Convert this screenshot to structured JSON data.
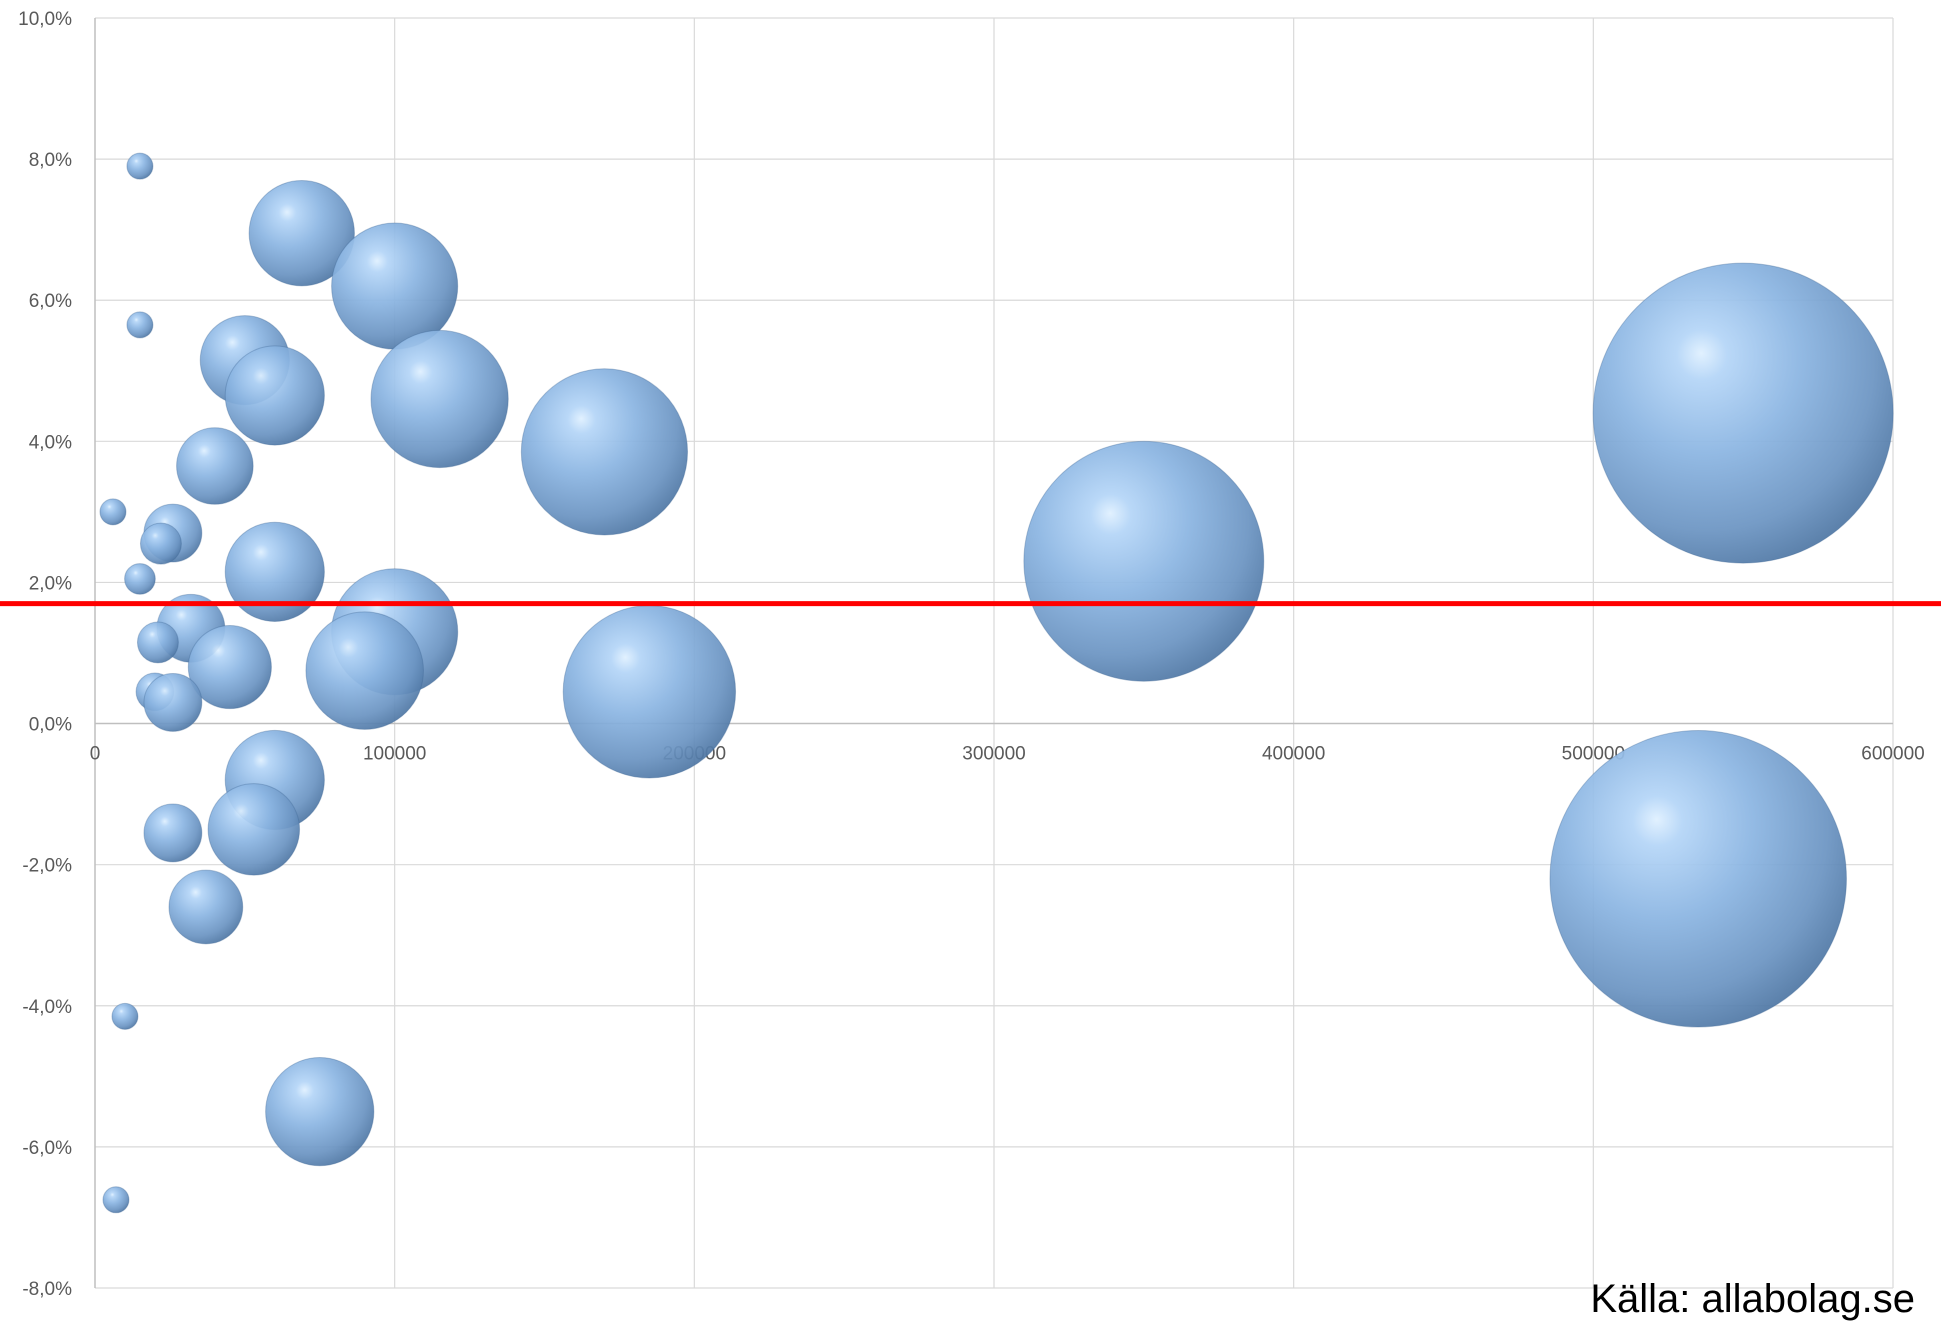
{
  "source_text": "Källa: allabolag.se",
  "colors": {
    "bubble_light": "#c9e2fb",
    "bubble_mid": "#8fb9e6",
    "bubble_dark": "#5a86b6",
    "bubble_edge": "#3e6796",
    "reference_line": "#ff0000",
    "grid": "#d9d9d9",
    "axis": "#bfbfbf"
  },
  "chart_data": {
    "type": "bubble",
    "x_axis": {
      "min": 0,
      "max": 600000,
      "step": 100000,
      "tick_labels": [
        "0",
        "100000",
        "200000",
        "300000",
        "400000",
        "500000",
        "600000"
      ]
    },
    "y_axis": {
      "min": -8,
      "max": 10,
      "step": 2,
      "unit": "%",
      "tick_labels": [
        "-8,0%",
        "-6,0%",
        "-4,0%",
        "-2,0%",
        "0,0%",
        "2,0%",
        "4,0%",
        "6,0%",
        "8,0%",
        "10,0%"
      ]
    },
    "grid": true,
    "reference_line": {
      "y": 1.7
    },
    "bubbles": [
      {
        "x": 15000,
        "y": 7.9,
        "size": 2.3
      },
      {
        "x": 69000,
        "y": 6.95,
        "size": 53
      },
      {
        "x": 100000,
        "y": 6.2,
        "size": 76
      },
      {
        "x": 15000,
        "y": 5.65,
        "size": 2.3
      },
      {
        "x": 50000,
        "y": 5.15,
        "size": 38
      },
      {
        "x": 60000,
        "y": 4.65,
        "size": 47
      },
      {
        "x": 115000,
        "y": 4.6,
        "size": 90
      },
      {
        "x": 170000,
        "y": 3.85,
        "size": 132
      },
      {
        "x": 40000,
        "y": 3.65,
        "size": 28
      },
      {
        "x": 6000,
        "y": 3.0,
        "size": 1
      },
      {
        "x": 26000,
        "y": 2.7,
        "size": 16
      },
      {
        "x": 22000,
        "y": 2.55,
        "size": 8
      },
      {
        "x": 15000,
        "y": 2.05,
        "size": 4.5
      },
      {
        "x": 60000,
        "y": 2.15,
        "size": 47
      },
      {
        "x": 350000,
        "y": 2.3,
        "size": 275
      },
      {
        "x": 550000,
        "y": 4.4,
        "size": 430
      },
      {
        "x": 32000,
        "y": 1.35,
        "size": 22
      },
      {
        "x": 21000,
        "y": 1.15,
        "size": 8
      },
      {
        "x": 100000,
        "y": 1.3,
        "size": 76
      },
      {
        "x": 90000,
        "y": 0.75,
        "size": 66
      },
      {
        "x": 45000,
        "y": 0.8,
        "size": 33
      },
      {
        "x": 20000,
        "y": 0.45,
        "size": 6.8
      },
      {
        "x": 26000,
        "y": 0.3,
        "size": 16
      },
      {
        "x": 185000,
        "y": 0.45,
        "size": 142
      },
      {
        "x": 60000,
        "y": -0.8,
        "size": 47
      },
      {
        "x": 26000,
        "y": -1.55,
        "size": 16
      },
      {
        "x": 53000,
        "y": -1.5,
        "size": 40
      },
      {
        "x": 37000,
        "y": -2.6,
        "size": 26
      },
      {
        "x": 535000,
        "y": -2.2,
        "size": 420
      },
      {
        "x": 10000,
        "y": -4.15,
        "size": 2.3
      },
      {
        "x": 75000,
        "y": -5.5,
        "size": 56
      },
      {
        "x": 7000,
        "y": -6.75,
        "size": 1.5
      }
    ]
  }
}
